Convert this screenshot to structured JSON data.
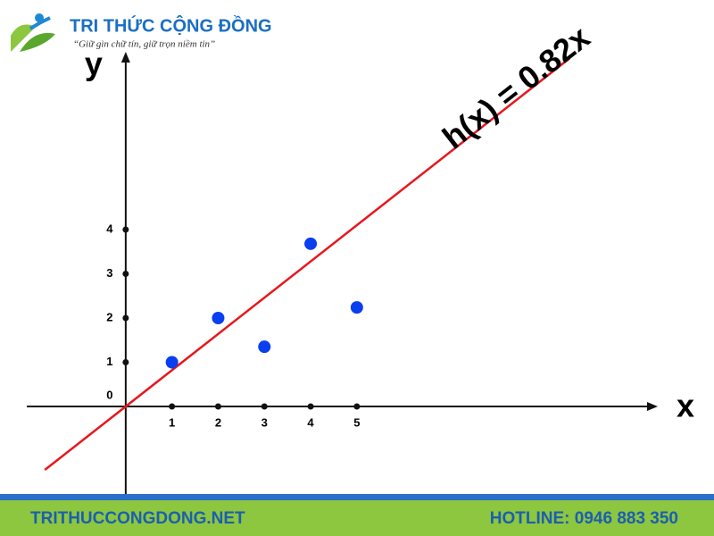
{
  "header": {
    "brand": "TRI THỨC CỘNG ĐỒNG",
    "tagline": "“Giữ gìn chữ tín, giữ trọn niềm tin”"
  },
  "chart_data": {
    "type": "scatter",
    "x_label": "x",
    "y_label": "y",
    "origin_label": "0",
    "annotation": "h(x) = 0.82x",
    "x": [
      1,
      2,
      3,
      4,
      5
    ],
    "values": [
      1.0,
      2.0,
      1.35,
      3.68,
      2.24
    ],
    "color": "#0a3ff0",
    "fit": {
      "slope": 0.82,
      "x_range": [
        -1.75,
        9.6
      ],
      "color": "#e8161b"
    },
    "xlim": [
      -2.14,
      11.47
    ],
    "ylim": [
      -2.02,
      7.98
    ],
    "xticks": [
      1,
      2,
      3,
      4,
      5
    ],
    "yticks": [
      1,
      2,
      3,
      4
    ]
  },
  "footer": {
    "website": "TRITHUCCONGDONG.NET",
    "hotline": "HOTLINE: 0946 883 350"
  }
}
